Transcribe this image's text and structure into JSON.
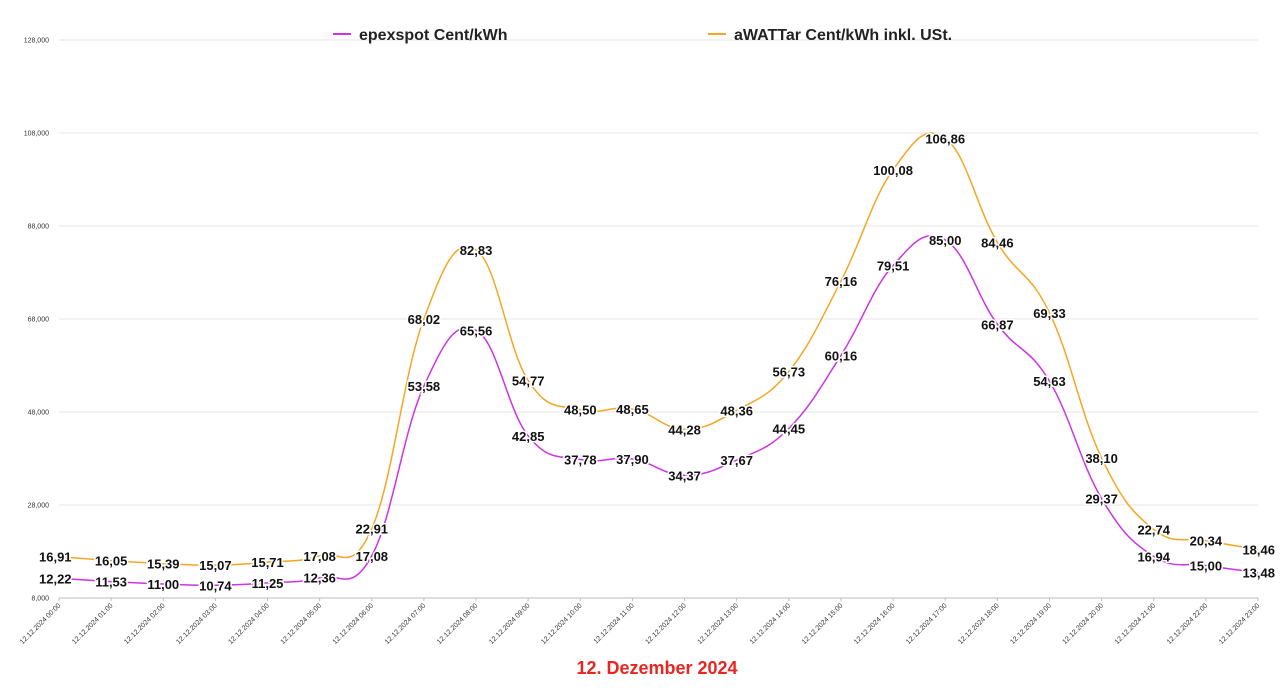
{
  "chart_data": {
    "type": "line",
    "title": "",
    "xlabel": "12. Dezember 2024",
    "ylabel": "",
    "ylim": [
      8,
      128
    ],
    "yticks": [
      "8,000",
      "28,000",
      "48,000",
      "68,000",
      "88,000",
      "108,000",
      "128,000"
    ],
    "ytick_values": [
      8,
      28,
      48,
      68,
      88,
      108,
      128
    ],
    "grid": true,
    "legend_position": "top",
    "categories": [
      "12.12.2024 00:00",
      "12.12.2024 01:00",
      "12.12.2024 02:00",
      "12.12.2024 03:00",
      "12.12.2024 04:00",
      "12.12.2024 05:00",
      "12.12.2024 06:00",
      "12.12.2024 07:00",
      "12.12.2024 08:00",
      "12.12.2024 09:00",
      "12.12.2024 10:00",
      "12.12.2024 11:00",
      "12.12.2024 12:00",
      "12.12.2024 13:00",
      "12.12.2024 14:00",
      "12.12.2024 15:00",
      "12.12.2024 16:00",
      "12.12.2024 17:00",
      "12.12.2024 18:00",
      "12.12.2024 19:00",
      "12.12.2024 20:00",
      "12.12.2024 21:00",
      "12.12.2024 22:00",
      "12.12.2024 23:00"
    ],
    "series": [
      {
        "name": "epexspot Cent/kWh",
        "color": "#cc33e6",
        "values": [
          12.22,
          11.53,
          11.0,
          10.74,
          11.25,
          12.36,
          17.08,
          53.58,
          65.56,
          42.85,
          37.78,
          37.9,
          34.37,
          37.67,
          44.45,
          60.16,
          79.51,
          85.0,
          66.87,
          54.63,
          29.37,
          16.94,
          15.0,
          13.48
        ],
        "labels": [
          "12,22",
          "11,53",
          "11,00",
          "10,74",
          "11,25",
          "12,36",
          "17,08",
          "53,58",
          "65,56",
          "42,85",
          "37,78",
          "37,90",
          "34,37",
          "37,67",
          "44,45",
          "60,16",
          "79,51",
          "85,00",
          "66,87",
          "54,63",
          "29,37",
          "16,94",
          "15,00",
          "13,48"
        ]
      },
      {
        "name": "aWATTar Cent/kWh inkl. USt.",
        "color": "#f5a623",
        "values": [
          16.91,
          16.05,
          15.39,
          15.07,
          15.71,
          17.08,
          22.91,
          68.02,
          82.83,
          54.77,
          48.5,
          48.65,
          44.28,
          48.36,
          56.73,
          76.16,
          100.08,
          106.86,
          84.46,
          69.33,
          38.1,
          22.74,
          20.34,
          18.46
        ],
        "labels": [
          "16,91",
          "16,05",
          "15,39",
          "15,07",
          "15,71",
          "17,08",
          "22,91",
          "68,02",
          "82,83",
          "54,77",
          "48,50",
          "48,65",
          "44,28",
          "48,36",
          "56,73",
          "76,16",
          "100,08",
          "106,86",
          "84,46",
          "69,33",
          "38,10",
          "22,74",
          "20,34",
          "18,46"
        ]
      }
    ]
  },
  "footer_color": "#e8251f",
  "grid_color": "#e6e6e6"
}
